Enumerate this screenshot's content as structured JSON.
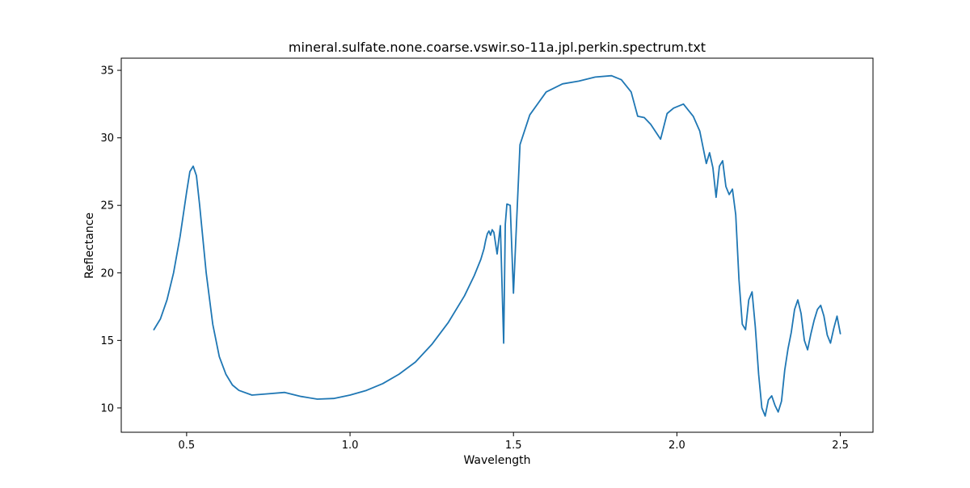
{
  "chart_data": {
    "type": "line",
    "title": "mineral.sulfate.none.coarse.vswir.so-11a.jpl.perkin.spectrum.txt",
    "xlabel": "Wavelength",
    "ylabel": "Reflectance",
    "xlim": [
      0.3,
      2.6
    ],
    "ylim": [
      8.2,
      35.9
    ],
    "xticks": [
      0.5,
      1.0,
      1.5,
      2.0,
      2.5
    ],
    "xtick_labels": [
      "0.5",
      "1.0",
      "1.5",
      "2.0",
      "2.5"
    ],
    "yticks": [
      10,
      15,
      20,
      25,
      30,
      35
    ],
    "ytick_labels": [
      "10",
      "15",
      "20",
      "25",
      "30",
      "35"
    ],
    "grid": false,
    "colors": {
      "line": "#1f77b4"
    },
    "series": [
      {
        "x": [
          0.4,
          0.42,
          0.44,
          0.46,
          0.48,
          0.5,
          0.51,
          0.52,
          0.53,
          0.54,
          0.56,
          0.58,
          0.6,
          0.62,
          0.64,
          0.66,
          0.7,
          0.75,
          0.8,
          0.85,
          0.9,
          0.95,
          1.0,
          1.05,
          1.1,
          1.15,
          1.2,
          1.25,
          1.3,
          1.35,
          1.38,
          1.4,
          1.41,
          1.415,
          1.42,
          1.425,
          1.43,
          1.435,
          1.44,
          1.45,
          1.46,
          1.47,
          1.475,
          1.48,
          1.49,
          1.5,
          1.52,
          1.55,
          1.6,
          1.65,
          1.7,
          1.75,
          1.8,
          1.83,
          1.86,
          1.88,
          1.9,
          1.92,
          1.95,
          1.97,
          1.99,
          2.02,
          2.05,
          2.07,
          2.09,
          2.1,
          2.11,
          2.12,
          2.13,
          2.14,
          2.15,
          2.16,
          2.17,
          2.18,
          2.19,
          2.2,
          2.21,
          2.22,
          2.23,
          2.24,
          2.25,
          2.26,
          2.27,
          2.28,
          2.29,
          2.3,
          2.31,
          2.32,
          2.33,
          2.34,
          2.35,
          2.36,
          2.37,
          2.38,
          2.39,
          2.4,
          2.41,
          2.42,
          2.43,
          2.44,
          2.45,
          2.46,
          2.47,
          2.48,
          2.49,
          2.5
        ],
        "values": [
          15.8,
          16.6,
          18.0,
          20.0,
          22.7,
          26.0,
          27.5,
          27.9,
          27.2,
          25.0,
          20.0,
          16.2,
          13.8,
          12.5,
          11.7,
          11.3,
          10.95,
          11.05,
          11.15,
          10.85,
          10.65,
          10.7,
          10.95,
          11.3,
          11.8,
          12.5,
          13.4,
          14.7,
          16.3,
          18.3,
          19.8,
          21.0,
          21.8,
          22.4,
          22.9,
          23.1,
          22.8,
          23.2,
          23.0,
          21.4,
          23.5,
          14.8,
          23.6,
          25.1,
          25.0,
          18.5,
          29.5,
          31.7,
          33.4,
          34.0,
          34.2,
          34.5,
          34.6,
          34.3,
          33.4,
          31.6,
          31.5,
          31.0,
          29.9,
          31.8,
          32.2,
          32.5,
          31.6,
          30.5,
          28.1,
          28.9,
          27.8,
          25.6,
          27.9,
          28.3,
          26.4,
          25.8,
          26.2,
          24.3,
          19.5,
          16.2,
          15.8,
          18.0,
          18.6,
          16.0,
          12.5,
          10.0,
          9.4,
          10.6,
          10.9,
          10.2,
          9.7,
          10.5,
          12.8,
          14.4,
          15.6,
          17.3,
          18.0,
          17.0,
          15.0,
          14.3,
          15.5,
          16.5,
          17.3,
          17.6,
          16.8,
          15.4,
          14.8,
          15.9,
          16.8,
          15.5
        ]
      }
    ]
  }
}
